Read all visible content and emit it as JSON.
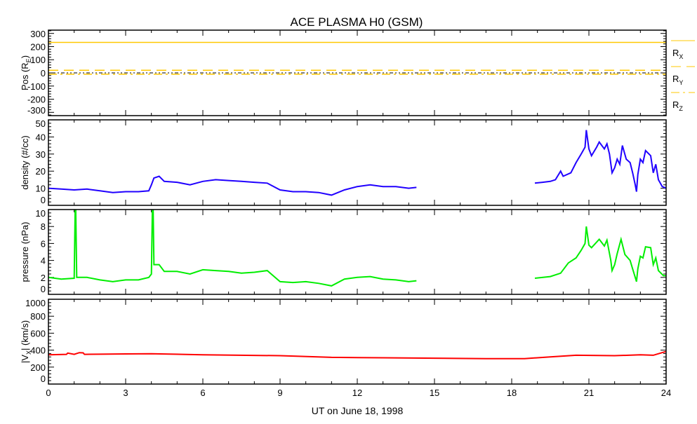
{
  "chart_data": {
    "type": "line",
    "title": "ACE PLASMA H0 (GSM)",
    "xlabel": "UT on June 18, 1998",
    "xlim": [
      0,
      24
    ],
    "xticks": [
      0,
      3,
      6,
      9,
      12,
      15,
      18,
      21,
      24
    ],
    "panels": [
      {
        "id": "position",
        "ylabel": "Pos (R",
        "ylabel_sub": "E",
        "ylabel_end": ")",
        "ylim": [
          -325,
          325
        ],
        "yticks": [
          -300,
          -200,
          -100,
          0,
          100,
          200,
          300
        ],
        "zero_line": true,
        "series": [
          {
            "name": "R",
            "sub": "X",
            "style": "solid",
            "color": "#ffc800",
            "x": [
              0,
              24
            ],
            "y": [
              232,
              232
            ]
          },
          {
            "name": "R",
            "sub": "Y",
            "style": "dash",
            "color": "#ffc800",
            "x": [
              0,
              24
            ],
            "y": [
              20,
              20
            ]
          },
          {
            "name": "R",
            "sub": "Z",
            "style": "dashdot",
            "color": "#ffc800",
            "x": [
              0,
              24
            ],
            "y": [
              -10,
              -10
            ]
          }
        ]
      },
      {
        "id": "density",
        "ylabel": "density (#/cc)",
        "ylim": [
          0,
          50
        ],
        "yticks": [
          0,
          10,
          20,
          30,
          40,
          50
        ],
        "series": [
          {
            "name": "density",
            "color": "#2000ff",
            "segments": [
              {
                "x": [
                  0,
                  0.5,
                  1,
                  1.5,
                  2,
                  2.5,
                  3,
                  3.5,
                  3.9,
                  4.0,
                  4.1,
                  4.3,
                  4.5,
                  5,
                  5.5,
                  6,
                  6.5,
                  7,
                  7.5,
                  8,
                  8.5,
                  9,
                  9.5,
                  10,
                  10.5,
                  11,
                  11.5,
                  12,
                  12.5,
                  13,
                  13.5,
                  14,
                  14.3
                ],
                "y": [
                  10,
                  9.5,
                  9,
                  9.5,
                  8.5,
                  7.5,
                  8,
                  8,
                  8.5,
                  12,
                  16,
                  17,
                  14,
                  13.5,
                  12,
                  14,
                  15,
                  14.5,
                  14,
                  13.5,
                  13,
                  9,
                  8,
                  8,
                  7.5,
                  6,
                  9,
                  11,
                  12,
                  11,
                  11,
                  10,
                  10.5
                ]
              },
              {
                "x": [
                  18.9,
                  19.2,
                  19.5,
                  19.7,
                  19.9,
                  20.0,
                  20.3,
                  20.5,
                  20.7,
                  20.85,
                  20.9,
                  21.0,
                  21.1,
                  21.3,
                  21.4,
                  21.6,
                  21.7,
                  21.8,
                  21.9,
                  22.0,
                  22.1,
                  22.2,
                  22.3,
                  22.45,
                  22.6,
                  22.7,
                  22.8,
                  22.85,
                  22.9,
                  23.0,
                  23.1,
                  23.2,
                  23.4,
                  23.5,
                  23.6,
                  23.7,
                  23.85,
                  24.0
                ],
                "y": [
                  13,
                  13.5,
                  14,
                  15,
                  20,
                  17,
                  19,
                  25,
                  30,
                  34,
                  44,
                  33,
                  29,
                  34,
                  37,
                  33,
                  36,
                  30,
                  19,
                  22,
                  27,
                  24,
                  35,
                  27,
                  25,
                  19,
                  12,
                  8,
                  18,
                  27,
                  25,
                  32,
                  29,
                  19,
                  24,
                  15,
                  11,
                  10
                ]
              }
            ]
          }
        ]
      },
      {
        "id": "pressure",
        "ylabel": "pressure (nPa)",
        "ylim": [
          0,
          10
        ],
        "yticks": [
          0,
          2,
          4,
          6,
          8,
          10
        ],
        "series": [
          {
            "name": "pressure",
            "color": "#00ee00",
            "segments": [
              {
                "x": [
                  0,
                  0.5,
                  1,
                  1.04,
                  1.06,
                  1.1,
                  1.5,
                  2,
                  2.5,
                  3,
                  3.5,
                  3.9,
                  4.0,
                  4.04,
                  4.07,
                  4.1,
                  4.3,
                  4.5,
                  5,
                  5.5,
                  6,
                  6.5,
                  7,
                  7.5,
                  8,
                  8.5,
                  9,
                  9.5,
                  10,
                  10.5,
                  11,
                  11.5,
                  12,
                  12.5,
                  13,
                  13.5,
                  14,
                  14.3
                ],
                "y": [
                  2,
                  1.8,
                  1.9,
                  10,
                  10,
                  2,
                  2,
                  1.7,
                  1.5,
                  1.7,
                  1.7,
                  2.0,
                  2.4,
                  10,
                  10,
                  3.5,
                  3.5,
                  2.7,
                  2.7,
                  2.4,
                  2.9,
                  2.8,
                  2.7,
                  2.5,
                  2.6,
                  2.8,
                  1.5,
                  1.4,
                  1.5,
                  1.3,
                  1.0,
                  1.8,
                  2.0,
                  2.1,
                  1.8,
                  1.7,
                  1.5,
                  1.6
                ]
              },
              {
                "x": [
                  18.9,
                  19.5,
                  19.9,
                  20.2,
                  20.5,
                  20.7,
                  20.85,
                  20.9,
                  21.0,
                  21.1,
                  21.4,
                  21.6,
                  21.7,
                  21.85,
                  21.9,
                  22.0,
                  22.1,
                  22.25,
                  22.4,
                  22.6,
                  22.7,
                  22.8,
                  22.85,
                  22.9,
                  23.0,
                  23.1,
                  23.2,
                  23.4,
                  23.5,
                  23.6,
                  23.7,
                  23.9,
                  24.0
                ],
                "y": [
                  1.9,
                  2.1,
                  2.5,
                  3.7,
                  4.3,
                  5.2,
                  6,
                  8,
                  5.8,
                  5.5,
                  6.5,
                  5.7,
                  6.4,
                  4,
                  2.8,
                  3.5,
                  4.8,
                  6.5,
                  4.7,
                  4.0,
                  3,
                  2,
                  1.5,
                  3,
                  4.5,
                  4.3,
                  5.6,
                  5.5,
                  3.5,
                  4.3,
                  2.8,
                  2.2,
                  2.2
                ]
              }
            ]
          }
        ]
      },
      {
        "id": "vx",
        "ylabel": "|V",
        "ylabel_sub": "X",
        "ylabel_end": "| (km/s)",
        "ylim": [
          0,
          1000
        ],
        "yticks": [
          0,
          200,
          400,
          600,
          800,
          1000
        ],
        "series": [
          {
            "name": "|Vx|",
            "color": "#ff0000",
            "segments": [
              {
                "x": [
                  0,
                  0.7,
                  0.75,
                  1,
                  1.2,
                  1.35,
                  1.4,
                  2,
                  3,
                  4,
                  6,
                  9,
                  11,
                  13,
                  15,
                  17,
                  18.5,
                  19.5,
                  20.5,
                  22,
                  23,
                  23.5,
                  24
                ],
                "y": [
                  345,
                  350,
                  365,
                  350,
                  370,
                  368,
                  350,
                  352,
                  355,
                  358,
                  345,
                  335,
                  315,
                  310,
                  305,
                  300,
                  300,
                  320,
                  340,
                  335,
                  345,
                  340,
                  385
                ]
              }
            ]
          }
        ]
      }
    ]
  }
}
